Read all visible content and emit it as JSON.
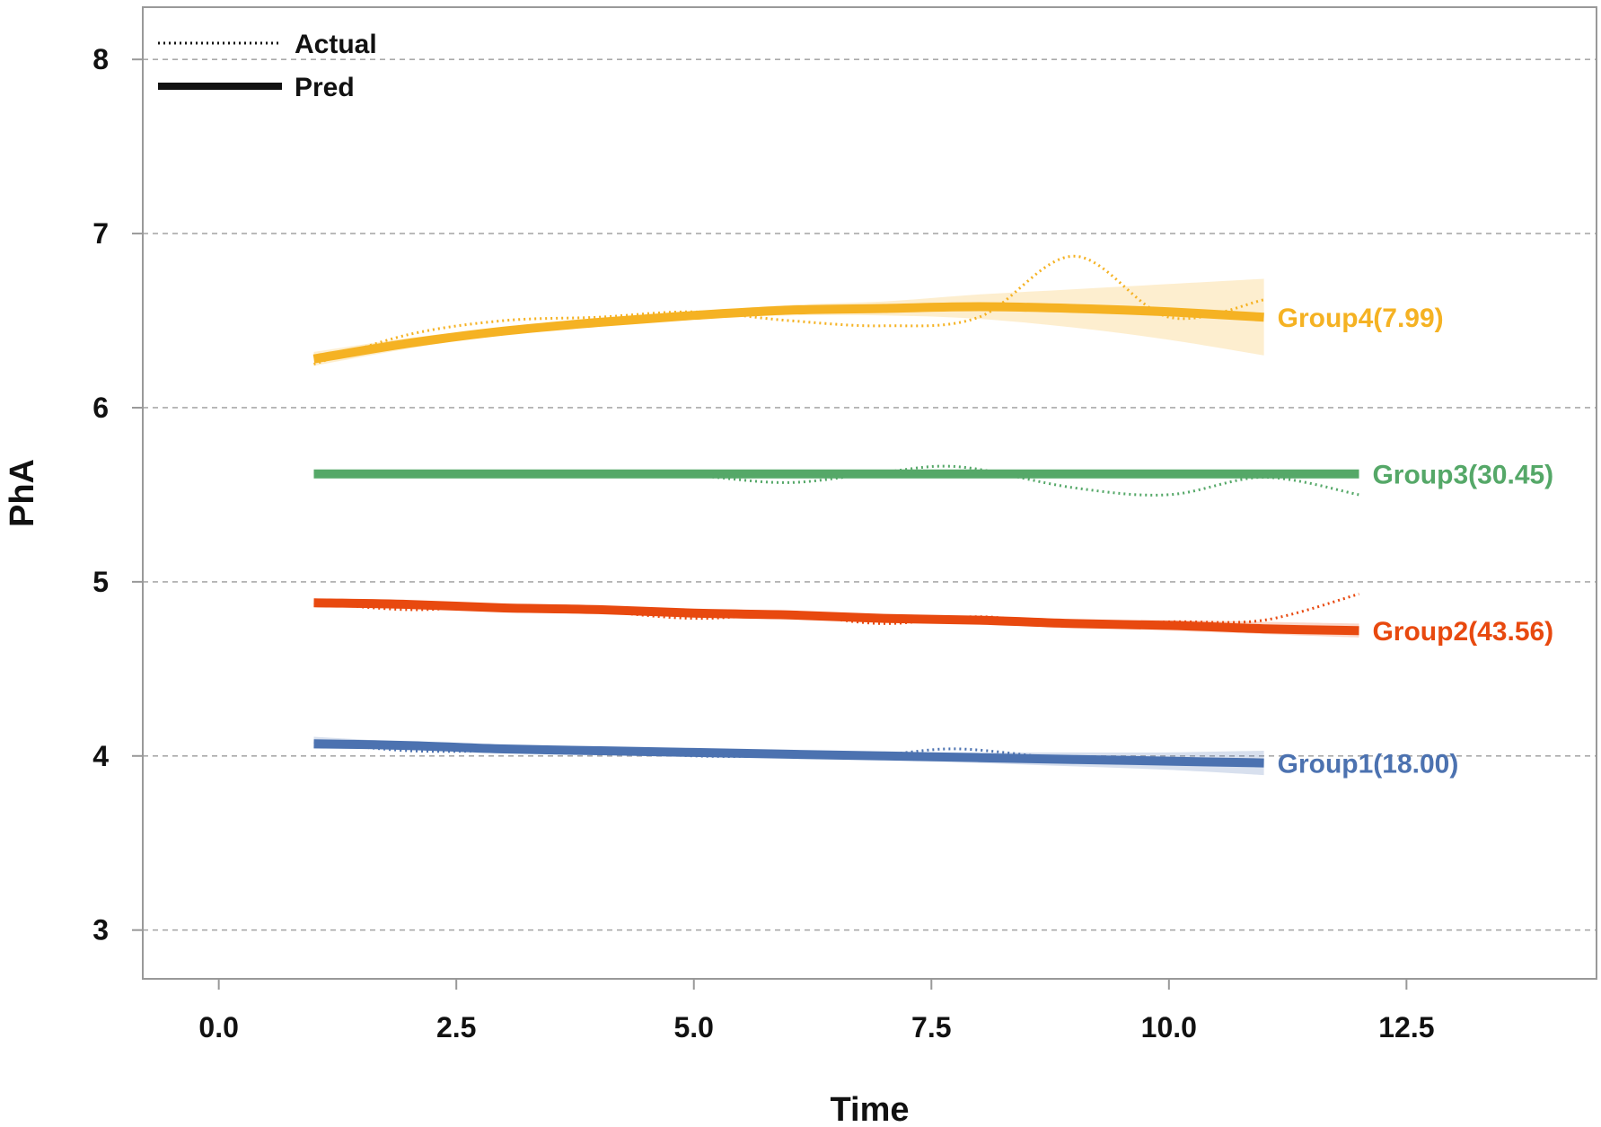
{
  "chart_data": {
    "type": "line",
    "title": "",
    "xlabel": "Time",
    "ylabel": "PhA",
    "xlim": [
      -0.8,
      14.5
    ],
    "ylim": [
      2.72,
      8.3
    ],
    "xticks": [
      0.0,
      2.5,
      5.0,
      7.5,
      10.0,
      12.5
    ],
    "xtick_labels": [
      "0.0",
      "2.5",
      "5.0",
      "7.5",
      "10.0",
      "12.5"
    ],
    "yticks": [
      3,
      4,
      5,
      6,
      7,
      8
    ],
    "ytick_labels": [
      "3",
      "4",
      "5",
      "6",
      "7",
      "8"
    ],
    "grid": "horizontal-dashed",
    "legend": {
      "position": "top-left",
      "entries": [
        {
          "label": "Actual",
          "style": "dotted"
        },
        {
          "label": "Pred",
          "style": "solid"
        }
      ]
    },
    "series": [
      {
        "name": "Group1(18.00)",
        "color": "#4c72b0",
        "actual": {
          "x": [
            1,
            2,
            3,
            4,
            5,
            6,
            7,
            7.8,
            9,
            10,
            11
          ],
          "y": [
            4.08,
            4.03,
            4.03,
            4.04,
            4.0,
            4.0,
            4.01,
            4.04,
            3.98,
            3.97,
            3.96
          ]
        },
        "pred": {
          "x": [
            1,
            2,
            3,
            4,
            5,
            6,
            7,
            8,
            9,
            10,
            11
          ],
          "y": [
            4.07,
            4.06,
            4.04,
            4.03,
            4.02,
            4.01,
            4.0,
            3.99,
            3.98,
            3.97,
            3.96
          ],
          "lower": [
            4.04,
            4.04,
            4.03,
            4.02,
            4.01,
            4.0,
            3.98,
            3.96,
            3.94,
            3.92,
            3.89
          ],
          "upper": [
            4.11,
            4.08,
            4.06,
            4.05,
            4.04,
            4.03,
            4.02,
            4.02,
            4.02,
            4.02,
            4.03
          ]
        }
      },
      {
        "name": "Group2(43.56)",
        "color": "#e8490f",
        "actual": {
          "x": [
            1,
            2,
            3,
            4,
            5,
            6,
            7,
            8,
            9,
            10,
            11,
            12
          ],
          "y": [
            4.88,
            4.84,
            4.86,
            4.83,
            4.79,
            4.81,
            4.76,
            4.8,
            4.75,
            4.77,
            4.78,
            4.93
          ]
        },
        "pred": {
          "x": [
            1,
            2,
            3,
            4,
            5,
            6,
            7,
            8,
            9,
            10,
            11,
            12
          ],
          "y": [
            4.88,
            4.87,
            4.85,
            4.84,
            4.82,
            4.81,
            4.79,
            4.78,
            4.76,
            4.75,
            4.73,
            4.72
          ],
          "lower": [
            4.86,
            4.85,
            4.84,
            4.83,
            4.81,
            4.8,
            4.78,
            4.76,
            4.74,
            4.72,
            4.7,
            4.68
          ],
          "upper": [
            4.9,
            4.89,
            4.87,
            4.85,
            4.83,
            4.82,
            4.81,
            4.8,
            4.78,
            4.78,
            4.77,
            4.76
          ]
        }
      },
      {
        "name": "Group3(30.45)",
        "color": "#55a868",
        "actual": {
          "x": [
            1,
            2,
            3,
            4,
            5,
            6,
            7,
            7.8,
            9,
            10,
            11,
            12
          ],
          "y": [
            5.63,
            5.61,
            5.62,
            5.63,
            5.61,
            5.57,
            5.63,
            5.66,
            5.54,
            5.5,
            5.6,
            5.5
          ]
        },
        "pred": {
          "x": [
            1,
            2,
            3,
            4,
            5,
            6,
            7,
            8,
            9,
            10,
            11,
            12
          ],
          "y": [
            5.62,
            5.62,
            5.62,
            5.62,
            5.62,
            5.62,
            5.62,
            5.62,
            5.62,
            5.62,
            5.62,
            5.62
          ],
          "lower": [
            5.6,
            5.6,
            5.6,
            5.6,
            5.6,
            5.6,
            5.6,
            5.6,
            5.6,
            5.6,
            5.6,
            5.6
          ],
          "upper": [
            5.64,
            5.64,
            5.64,
            5.64,
            5.64,
            5.64,
            5.64,
            5.64,
            5.64,
            5.64,
            5.64,
            5.64
          ]
        }
      },
      {
        "name": "Group4(7.99)",
        "color": "#f5b223",
        "actual": {
          "x": [
            1,
            2,
            3,
            4,
            5,
            6,
            7,
            8,
            9,
            10,
            11
          ],
          "y": [
            6.25,
            6.42,
            6.5,
            6.52,
            6.55,
            6.5,
            6.47,
            6.52,
            6.87,
            6.52,
            6.62
          ]
        },
        "pred": {
          "x": [
            1,
            2,
            3,
            4,
            5,
            6,
            7,
            8,
            9,
            10,
            11
          ],
          "y": [
            6.28,
            6.37,
            6.44,
            6.49,
            6.53,
            6.56,
            6.57,
            6.58,
            6.57,
            6.55,
            6.52
          ],
          "lower": [
            6.24,
            6.34,
            6.42,
            6.47,
            6.51,
            6.53,
            6.53,
            6.51,
            6.46,
            6.39,
            6.3
          ],
          "upper": [
            6.32,
            6.4,
            6.46,
            6.51,
            6.55,
            6.59,
            6.61,
            6.65,
            6.68,
            6.71,
            6.74
          ]
        }
      }
    ]
  }
}
